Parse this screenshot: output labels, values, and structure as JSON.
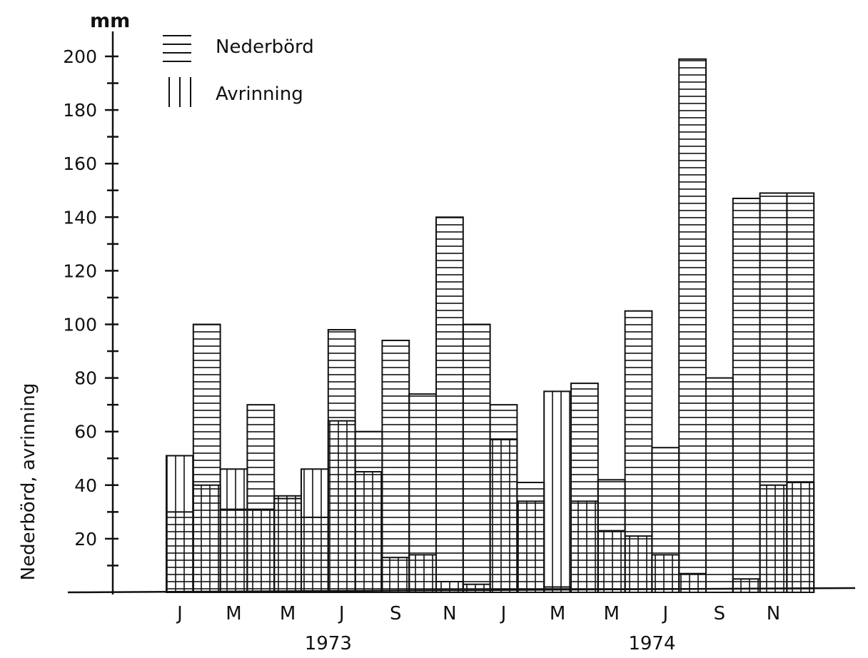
{
  "chart_data": {
    "type": "bar",
    "title": "",
    "unit_label": "mm",
    "ylabel": "Nederbörd, avrinning",
    "xlabel": "",
    "ylim": [
      0,
      200
    ],
    "yticks": [
      20,
      40,
      60,
      80,
      100,
      120,
      140,
      160,
      180,
      200
    ],
    "ytick_labels": [
      "20",
      "40",
      "60",
      "80",
      "100",
      "120",
      "140",
      "160",
      "180",
      "200"
    ],
    "grid": false,
    "legend_position": "top-left",
    "legend": [
      {
        "name": "Nederbörd",
        "hatch": "horizontal"
      },
      {
        "name": "Avrinning",
        "hatch": "vertical"
      }
    ],
    "categories": [
      "Jan 1973",
      "Feb 1973",
      "Mar 1973",
      "Apr 1973",
      "May 1973",
      "Jun 1973",
      "Jul 1973",
      "Aug 1973",
      "Sep 1973",
      "Oct 1973",
      "Nov 1973",
      "Dec 1973",
      "Jan 1974",
      "Feb 1974",
      "Mar 1974",
      "Apr 1974",
      "May 1974",
      "Jun 1974",
      "Jul 1974",
      "Aug 1974",
      "Sep 1974",
      "Oct 1974",
      "Nov 1974",
      "Dec 1974"
    ],
    "month_tick_labels": [
      "J",
      "M",
      "M",
      "J",
      "S",
      "N",
      "J",
      "M",
      "M",
      "J",
      "S",
      "N"
    ],
    "year_labels": [
      "1973",
      "1974"
    ],
    "series": [
      {
        "name": "Nederbörd",
        "values": [
          30,
          100,
          31,
          70,
          35,
          28,
          98,
          60,
          94,
          74,
          140,
          100,
          70,
          41,
          2,
          78,
          42,
          105,
          54,
          199,
          80,
          147,
          149,
          149
        ]
      },
      {
        "name": "Avrinning",
        "values": [
          51,
          40,
          46,
          31,
          36,
          46,
          64,
          45,
          13,
          14,
          4,
          3,
          57,
          34,
          75,
          34,
          23,
          21,
          14,
          7,
          0,
          5,
          40,
          41
        ]
      }
    ]
  }
}
